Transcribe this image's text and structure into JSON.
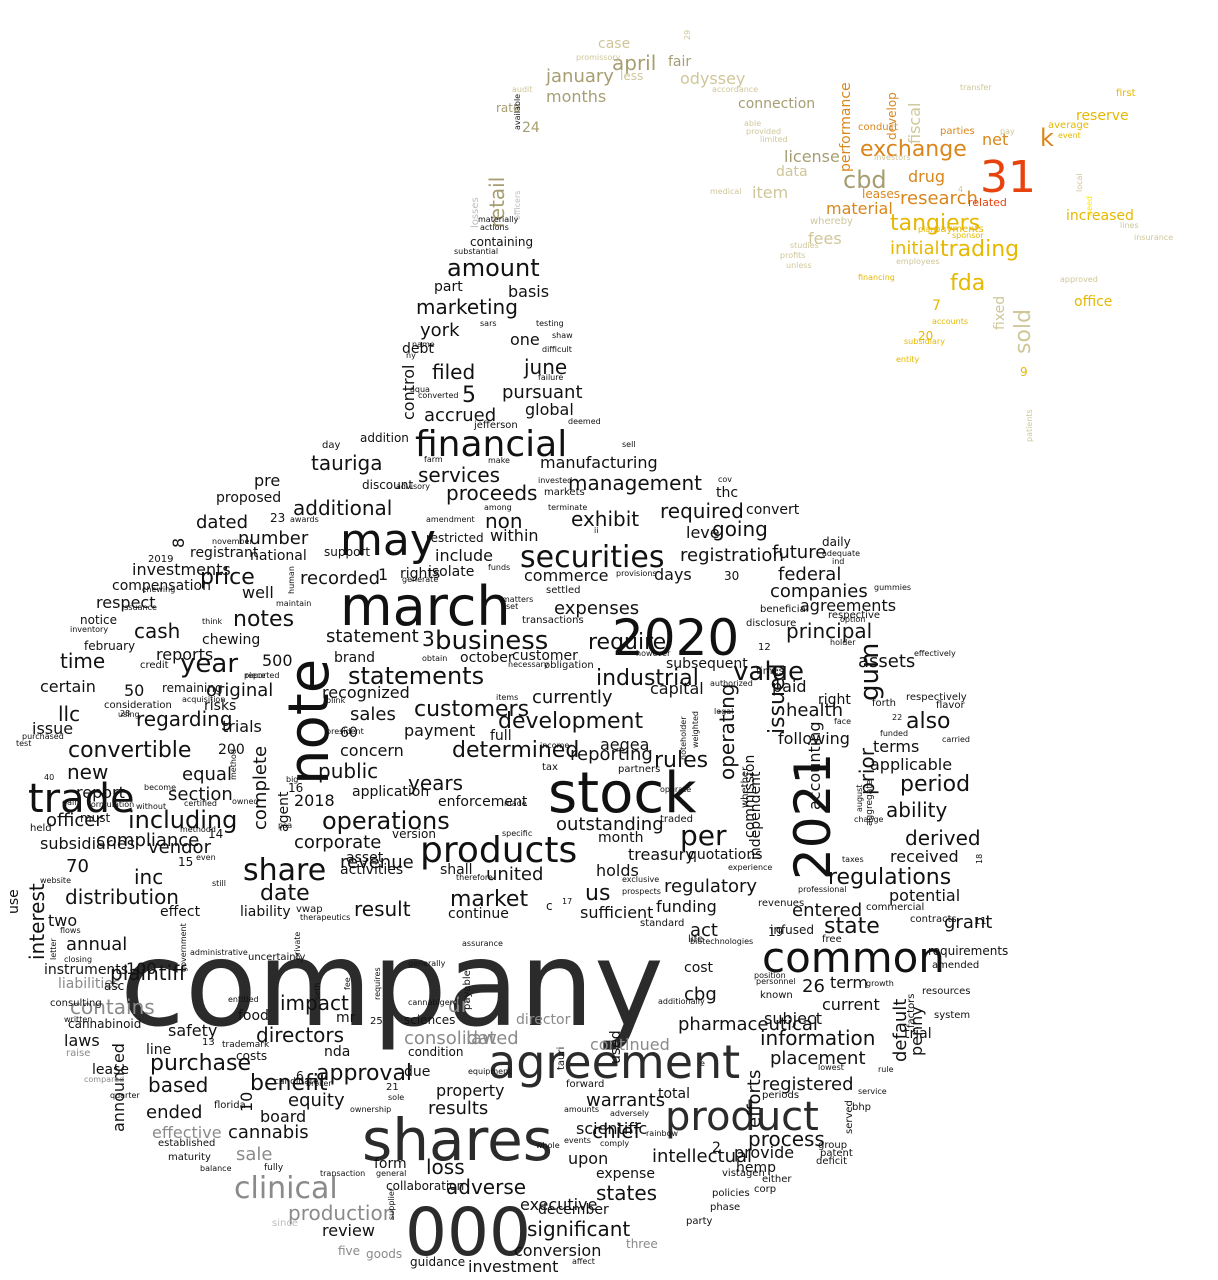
{
  "palette": {
    "dark": "#2b2b2b",
    "black": "#111111",
    "gray": "#8a8a8a",
    "light_gray": "#bdbdbd",
    "olive": "#a69e72",
    "khaki": "#cfc79a",
    "gold": "#e6b800",
    "orange": "#d9861c",
    "red_orange": "#e8430e",
    "yellow": "#ffe600"
  },
  "words": [
    "company",
    "000",
    "shares",
    "stock",
    "march",
    "agreement",
    "2020",
    "2021",
    "note",
    "may",
    "product",
    "common",
    "products",
    "financial",
    "31",
    "share",
    "securities",
    "business",
    "clinical",
    "operations",
    "statements",
    "value",
    "per",
    "including",
    "convertible",
    "year",
    "gum",
    "development",
    "additional",
    "cbd",
    "amount",
    "tangiers",
    "also",
    "fda",
    "exchange",
    "trading",
    "marketing",
    "tauriga",
    "services",
    "proceeds",
    "management",
    "non",
    "exhibit",
    "filed",
    "june",
    "pursuant",
    "accrued",
    "global",
    "manufacturing",
    "dated",
    "number",
    "price",
    "notes",
    "cash",
    "time",
    "new",
    "llc",
    "interest",
    "distribution",
    "inc",
    "date",
    "result",
    "revenue",
    "market",
    "united",
    "us",
    "regulatory",
    "regulations",
    "entered",
    "state",
    "potential",
    "derived",
    "received",
    "ability",
    "period",
    "terms",
    "applicable",
    "assets",
    "principal",
    "federal",
    "companies",
    "agreements",
    "issued",
    "operating",
    "prior",
    "accounting",
    "following",
    "health",
    "paid",
    "right",
    "determined",
    "sales",
    "public",
    "years",
    "outstanding",
    "reporting",
    "currently",
    "industrial",
    "capital",
    "subsequent",
    "require",
    "registration",
    "include",
    "within",
    "restricted",
    "commerce",
    "expenses",
    "days",
    "level",
    "going",
    "required",
    "future",
    "thc",
    "convert",
    "retail",
    "january",
    "april",
    "fair",
    "months",
    "rate",
    "connection",
    "data",
    "license",
    "item",
    "material",
    "fees",
    "research",
    "drug",
    "initial",
    "net",
    "sold",
    "related",
    "reserve",
    "increased",
    "fixed",
    "office",
    "contains",
    "dr",
    "consolidated",
    "continued",
    "impact",
    "directors",
    "approval",
    "purchase",
    "based",
    "ended",
    "equity",
    "board",
    "results",
    "property",
    "warrants",
    "chief",
    "upon",
    "loss",
    "adverse",
    "states",
    "significant",
    "conversion",
    "investment",
    "december",
    "executive",
    "collaboration",
    "form",
    "review",
    "production",
    "sale",
    "cannabis",
    "effective",
    "intellectual",
    "provide",
    "hemp",
    "process",
    "expense",
    "total",
    "registered",
    "placement",
    "information",
    "subject",
    "current",
    "default",
    "term",
    "trial",
    "requirements",
    "penny",
    "efforts",
    "cbg",
    "pharmaceutical",
    "cost",
    "act",
    "used",
    "tauri",
    "payable",
    "independent",
    "commission",
    "whether",
    "safety",
    "announced",
    "laws",
    "lease",
    "line",
    "mr",
    "nda",
    "food",
    "costs",
    "due",
    "condition",
    "law",
    "director",
    "sciences",
    "liabilities",
    "instruments",
    "annual",
    "two",
    "effect",
    "liability",
    "continue",
    "shall",
    "sufficient",
    "funding",
    "infused",
    "activities",
    "asset",
    "corporate",
    "version",
    "application",
    "enforcement",
    "concern",
    "payment",
    "recognized",
    "regarding",
    "original",
    "trials",
    "risks",
    "equal",
    "section",
    "report",
    "issue",
    "certain",
    "remaining",
    "complete",
    "agent",
    "full",
    "october",
    "customer",
    "brand",
    "statement",
    "recorded",
    "rights",
    "well",
    "chewing",
    "respect",
    "investments",
    "compensation",
    "notice",
    "february",
    "reports",
    "national",
    "pre",
    "proposed",
    "discount",
    "customers",
    "rules",
    "aegea",
    "one",
    "basis",
    "york",
    "debt",
    "part",
    "containing",
    "control",
    "day",
    "addition",
    "jefferson",
    "sell",
    "invested",
    "markets",
    "vendor",
    "compliance",
    "officer",
    "must",
    "use",
    "held",
    "subsidiaries",
    "cannabinoid",
    "asc",
    "consulting",
    "raise",
    "established",
    "maturity",
    "balance",
    "fully",
    "trademark",
    "candidate",
    "five",
    "goods",
    "guidance",
    "three",
    "party",
    "phase",
    "policies",
    "either",
    "corp",
    "vistagen",
    "deficit",
    "group",
    "patent",
    "served",
    "bhp",
    "lowest",
    "rule",
    "service",
    "periods",
    "personnel",
    "position",
    "known",
    "amended",
    "resources",
    "factors",
    "system",
    "growth",
    "free",
    "contracts",
    "commercial",
    "revenues",
    "life",
    "standard",
    "aggregate",
    "august",
    "change",
    "taxes",
    "experience",
    "professional",
    "biotechnologies",
    "exclusive",
    "prospects",
    "therefore",
    "specific",
    "made",
    "operate",
    "month",
    "quotations",
    "treasury",
    "holds",
    "traded",
    "partners",
    "tax",
    "income",
    "weighted",
    "noteholder",
    "legal",
    "authorized",
    "however",
    "times",
    "disclosure",
    "beneficial",
    "respective",
    "holder",
    "option",
    "forth",
    "face",
    "funded",
    "carried",
    "flavor",
    "respectively",
    "effectively",
    "gummies",
    "daily",
    "adequate",
    "ind",
    "cov",
    "ii",
    "provisions",
    "isolate",
    "support",
    "registrant",
    "november",
    "chewing",
    "inventory",
    "issuance",
    "think",
    "credit",
    "acquisition",
    "consideration",
    "using",
    "test",
    "purchased",
    "gain",
    "without",
    "certified",
    "become",
    "formulation",
    "website",
    "letter",
    "flows",
    "closing",
    "written",
    "government",
    "administrative",
    "uncertainty",
    "entitled",
    "private",
    "seth",
    "fee",
    "requires",
    "generally",
    "cannabigerol",
    "assurance",
    "additionally",
    "whole",
    "events",
    "affect",
    "amounts",
    "comply",
    "rainbow",
    "adversely",
    "forward",
    "ownership",
    "sole",
    "general",
    "transaction",
    "supplier",
    "since",
    "broker",
    "equipment",
    "compared",
    "quarter",
    "florida",
    "piece",
    "reported",
    "big",
    "psa",
    "methodd",
    "method",
    "owned",
    "even",
    "still",
    "therapeutics",
    "vwap",
    "generate",
    "maintain",
    "human",
    "obtain",
    "necessary",
    "obligation",
    "items",
    "settled",
    "matters",
    "set",
    "funds",
    "transactions",
    "blink",
    "president",
    "aqua",
    "converted",
    "name",
    "ny",
    "sars",
    "testing",
    "shaw",
    "difficult",
    "failure",
    "deemed",
    "farm",
    "make",
    "advisory",
    "among",
    "terminate",
    "amendment",
    "awards",
    "losses",
    "officers",
    "materially",
    "actions",
    "substantial",
    "available",
    "audit",
    "case",
    "promissory",
    "less",
    "odyssey",
    "accordance",
    "able",
    "provided",
    "limited",
    "leases",
    "investors",
    "performance",
    "develop",
    "fiscal",
    "conduct",
    "parties",
    "transfer",
    "average",
    "event",
    "first",
    "whereby",
    "payments",
    "sponsor",
    "plan",
    "financing",
    "employees",
    "studies",
    "unless",
    "profits",
    "subsidiary",
    "accounts",
    "entity",
    "approved",
    "local",
    "need",
    "lines",
    "insurance",
    "medical",
    "pay",
    "patients",
    "trade",
    "benefit",
    "scientific",
    "plaintiff",
    "grant",
    "1",
    "2",
    "3",
    "4",
    "5",
    "6",
    "7",
    "8",
    "9",
    "10",
    "11",
    "12",
    "13",
    "14",
    "15",
    "16",
    "17",
    "18",
    "19",
    "20",
    "21",
    "22",
    "23",
    "24",
    "25",
    "26",
    "28",
    "29",
    "30",
    "40",
    "50",
    "60",
    "70",
    "100",
    "200",
    "500",
    "2018",
    "2019",
    "c",
    "e",
    "f",
    "k",
    "b",
    "u",
    "mm",
    "00",
    "0"
  ]
}
